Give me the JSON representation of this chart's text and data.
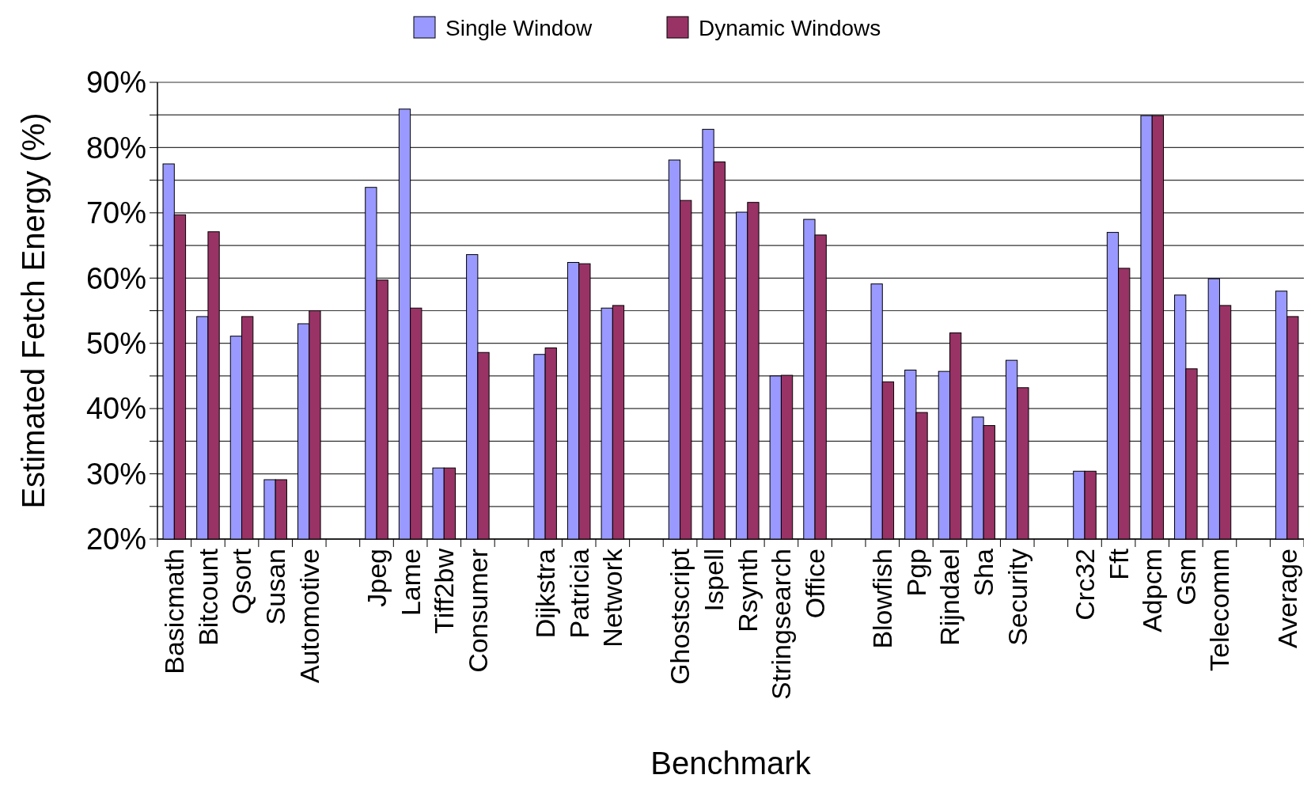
{
  "chart_data": {
    "type": "bar",
    "xlabel": "Benchmark",
    "ylabel": "Estimated Fetch Energy (%)",
    "categories": [
      "Basicmath",
      "Bitcount",
      "Qsort",
      "Susan",
      "Automotive",
      null,
      "Jpeg",
      "Lame",
      "Tiff2bw",
      "Consumer",
      null,
      "Dijkstra",
      "Patricia",
      "Network",
      null,
      "Ghostscript",
      "Ispell",
      "Rsynth",
      "Stringsearch",
      "Office",
      null,
      "Blowfish",
      "Pgp",
      "Rijndael",
      "Sha",
      "Security",
      null,
      "Crc32",
      "Fft",
      "Adpcm",
      "Gsm",
      "Telecomm",
      null,
      "Average"
    ],
    "series": [
      {
        "name": "Single Window",
        "color": "#9999ff",
        "values": [
          77.5,
          54.1,
          51.1,
          29.1,
          53.0,
          null,
          73.9,
          85.9,
          30.9,
          63.6,
          null,
          48.3,
          62.4,
          55.4,
          null,
          78.1,
          82.8,
          70.1,
          45.0,
          69.0,
          null,
          59.1,
          45.9,
          45.7,
          38.7,
          47.4,
          null,
          30.4,
          67.0,
          84.9,
          57.4,
          59.9,
          null,
          58.0
        ]
      },
      {
        "name": "Dynamic Windows",
        "color": "#993366",
        "values": [
          69.7,
          67.1,
          54.1,
          29.1,
          55.0,
          null,
          59.7,
          55.4,
          30.9,
          48.6,
          null,
          49.3,
          62.2,
          55.8,
          null,
          71.9,
          77.8,
          71.6,
          45.1,
          66.6,
          null,
          44.1,
          39.4,
          51.6,
          37.4,
          43.2,
          null,
          30.4,
          61.5,
          84.9,
          46.1,
          55.8,
          null,
          54.1
        ]
      }
    ],
    "ylim": [
      20,
      90
    ],
    "yticks": [
      {
        "value": 20,
        "label": "20%"
      },
      {
        "value": 25,
        "label": null
      },
      {
        "value": 30,
        "label": "30%"
      },
      {
        "value": 35,
        "label": null
      },
      {
        "value": 40,
        "label": "40%"
      },
      {
        "value": 45,
        "label": null
      },
      {
        "value": 50,
        "label": "50%"
      },
      {
        "value": 55,
        "label": null
      },
      {
        "value": 60,
        "label": "60%"
      },
      {
        "value": 65,
        "label": null
      },
      {
        "value": 70,
        "label": "70%"
      },
      {
        "value": 75,
        "label": null
      },
      {
        "value": 80,
        "label": "80%"
      },
      {
        "value": 85,
        "label": null
      },
      {
        "value": 90,
        "label": "90%"
      }
    ],
    "grid": "y",
    "legend": "top"
  }
}
